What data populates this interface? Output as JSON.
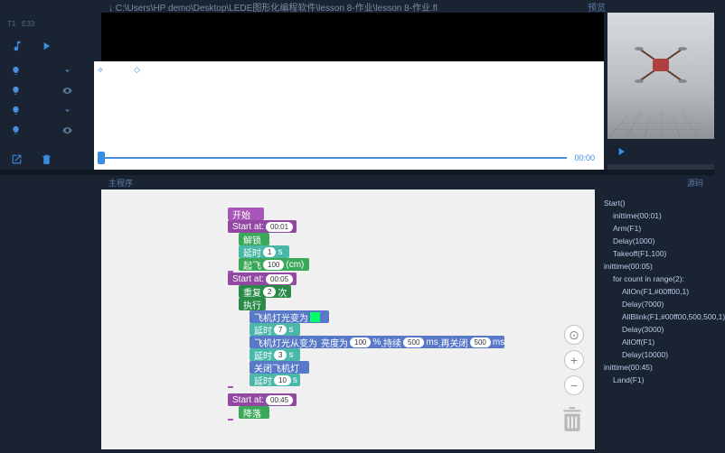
{
  "topbar": {
    "filepath": "↓ C:\\Users\\HP demo\\Desktop\\LEDE图形化编程软件\\lesson 8-作业\\lesson 8-作业.fl",
    "menu_right": "预览"
  },
  "timeline": {
    "marker1": "⟡",
    "marker2": "◇",
    "current_time": "00:00"
  },
  "tabs": {
    "left": "主程序",
    "right": "源码"
  },
  "blocks": {
    "start_label": "开始",
    "start_at": "Start at:",
    "t1": "00:01",
    "arm": "解锁",
    "delay_label": "延时",
    "delay_unit": "s",
    "d1": "1",
    "takeoff": "起飞",
    "takeoff_h": "100",
    "takeoff_unit": "(cm)",
    "t2": "00:05",
    "repeat": "重复",
    "repeat_n": "2",
    "repeat_suf": "次",
    "exec": "执行",
    "led_on": "飞机灯光变为",
    "d2": "7",
    "led_blink": "飞机灯光从变为",
    "blink_bright": "亮度为",
    "blink_bright_v": "100",
    "blink_bright_u": "%",
    "blink_on": ",持续",
    "blink_on_v": "500",
    "blink_on_u": "ms",
    "blink_off": ",再关闭",
    "blink_off_v": "500",
    "blink_off_u": "ms",
    "d3": "3",
    "led_off": "关闭飞机灯",
    "d4": "10",
    "t3": "00:45",
    "land": "降落"
  },
  "code": [
    {
      "t": "Start()",
      "i": 0
    },
    {
      "t": "inittime(00:01)",
      "i": 1
    },
    {
      "t": "Arm(F1)",
      "i": 1
    },
    {
      "t": "Delay(1000)",
      "i": 1
    },
    {
      "t": "Takeoff(F1,100)",
      "i": 1
    },
    {
      "t": "inittime(00:05)",
      "i": 0
    },
    {
      "t": "for count in range(2):",
      "i": 1
    },
    {
      "t": "AllOn(F1,#00ff00,1)",
      "i": 2
    },
    {
      "t": "Delay(7000)",
      "i": 2
    },
    {
      "t": "AllBlink(F1,#00ff00,500,500,1)",
      "i": 2
    },
    {
      "t": "Delay(3000)",
      "i": 2
    },
    {
      "t": "AllOff(F1)",
      "i": 2
    },
    {
      "t": "Delay(10000)",
      "i": 2
    },
    {
      "t": "inittime(00:45)",
      "i": 0
    },
    {
      "t": "Land(F1)",
      "i": 1
    }
  ],
  "colors": {
    "bg": "#1a2332",
    "accent": "#3a8de0",
    "canvas": "#f0f0f0",
    "block_purple": "#a855b8",
    "block_green": "#3aa858",
    "block_teal": "#4ab8a8",
    "block_blue": "#5878c8",
    "led_green": "#00ff66"
  }
}
